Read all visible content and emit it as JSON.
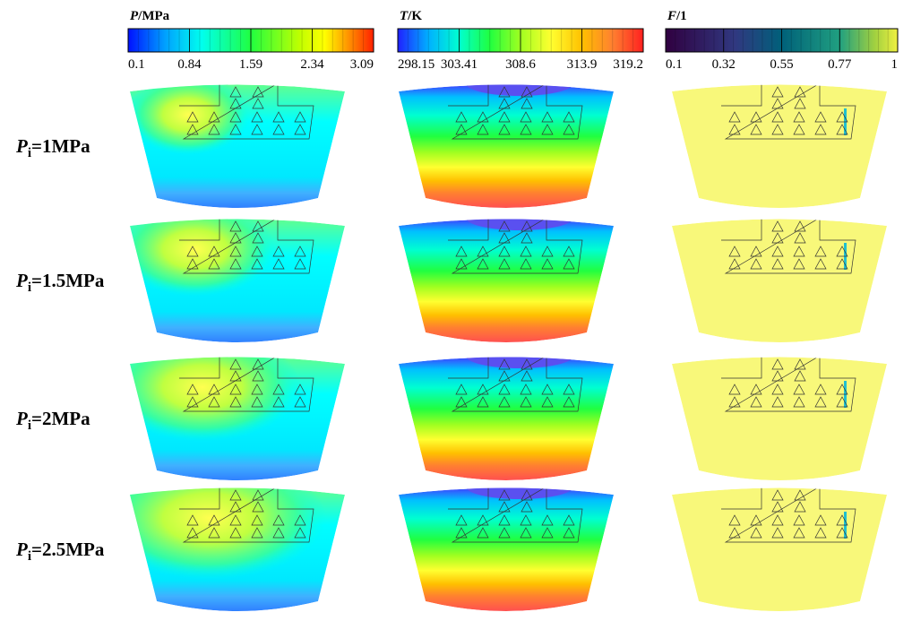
{
  "colorbars": [
    {
      "symbol": "P",
      "unit": "/MPa",
      "ticks": [
        "0.1",
        "0.84",
        "1.59",
        "2.34",
        "3.09"
      ]
    },
    {
      "symbol": "T",
      "unit": "/K",
      "ticks": [
        "298.15",
        "303.41",
        "308.6",
        "313.9",
        "319.2"
      ]
    },
    {
      "symbol": "F",
      "unit": "/1",
      "ticks": [
        "0.1",
        "0.32",
        "0.55",
        "0.77",
        "1"
      ]
    }
  ],
  "rows": [
    {
      "symbol": "P",
      "subscript": "i",
      "text": "=1MPa"
    },
    {
      "symbol": "P",
      "subscript": "i",
      "text": "=1.5MPa"
    },
    {
      "symbol": "P",
      "subscript": "i",
      "text": "=2MPa"
    },
    {
      "symbol": "P",
      "subscript": "i",
      "text": "=2.5MPa"
    }
  ]
}
